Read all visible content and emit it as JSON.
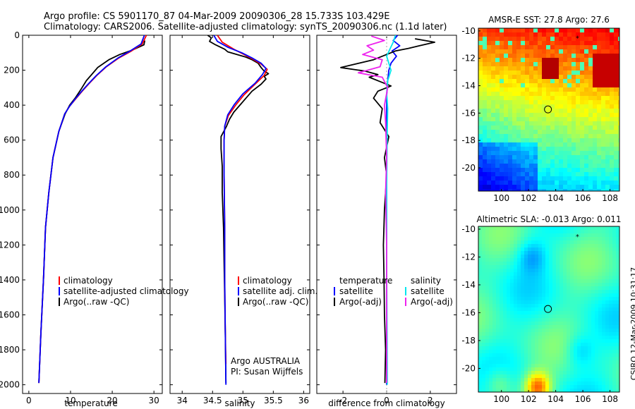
{
  "figure": {
    "title_line1": "Argo profile: CS 5901170_87 04-Mar-2009 20090306_28 15.733S 103.429E",
    "title_line2": "Climatology: CARS2006. Satellite-adjusted climatology: synTS_20090306.nc (1.1d later)",
    "side_label": "CSIRO 12-Mar-2009 10:31:17",
    "argo_label_line1": "Argo AUSTRALIA",
    "argo_label_line2": "PI: Susan Wijffels"
  },
  "colors": {
    "climatology": "#ff0000",
    "satellite": "#0000ff",
    "argo": "#000000",
    "sal_satellite": "#00e5ee",
    "sal_argo": "#ee22ee"
  },
  "chart_data": [
    {
      "id": "temperature",
      "type": "line",
      "xlabel": "temperature",
      "ylabel": "",
      "xlim": [
        -1.5,
        32
      ],
      "ylim": [
        2050,
        0
      ],
      "xticks": [
        "0",
        "10",
        "20",
        "30"
      ],
      "xtick_values": [
        0,
        10,
        20,
        30
      ],
      "yticks": [
        "0",
        "200",
        "400",
        "600",
        "800",
        "1000",
        "1200",
        "1400",
        "1600",
        "1800",
        "2000"
      ],
      "ytick_values": [
        0,
        200,
        400,
        600,
        800,
        1000,
        1200,
        1400,
        1600,
        1800,
        2000
      ],
      "legend": [
        "climatology",
        "satellite-adjusted climatology",
        "Argo(..raw -QC)"
      ],
      "series": [
        {
          "name": "Argo(..raw -QC)",
          "color_key": "argo",
          "x": [
            27.8,
            27.6,
            24.8,
            21.8,
            19.2,
            16.5,
            15.6,
            13.8,
            12.5,
            11.1,
            9.8,
            8.7,
            7.2,
            5.8,
            4.8,
            4.0,
            3.5,
            2.9,
            2.4
          ],
          "y": [
            30,
            55,
            85,
            110,
            140,
            185,
            210,
            260,
            310,
            360,
            400,
            450,
            550,
            700,
            900,
            1100,
            1400,
            1700,
            1990
          ]
        },
        {
          "name": "climatology",
          "color_key": "climatology",
          "x": [
            28.2,
            27.2,
            24.6,
            21.6,
            18.6,
            16.3,
            14.3,
            12.8,
            11.2,
            9.8,
            8.6,
            7.2,
            5.8,
            4.8,
            4.0,
            3.5,
            2.9,
            2.4
          ],
          "y": [
            0,
            50,
            90,
            130,
            180,
            230,
            280,
            320,
            365,
            405,
            450,
            550,
            700,
            900,
            1100,
            1400,
            1700,
            1990
          ]
        },
        {
          "name": "satellite-adjusted climatology",
          "color_key": "satellite",
          "x": [
            27.7,
            26.9,
            24.3,
            21.4,
            18.5,
            16.2,
            14.2,
            12.7,
            11.1,
            9.8,
            8.6,
            7.2,
            5.8,
            4.8,
            4.0,
            3.5,
            2.9,
            2.4
          ],
          "y": [
            0,
            50,
            90,
            130,
            180,
            230,
            280,
            320,
            365,
            405,
            450,
            550,
            700,
            900,
            1100,
            1400,
            1700,
            1990
          ]
        }
      ]
    },
    {
      "id": "salinity",
      "type": "line",
      "xlabel": "salinity",
      "xlim": [
        33.8,
        36.1
      ],
      "ylim": [
        2050,
        0
      ],
      "xticks": [
        "34",
        "34.5",
        "35",
        "35.5",
        "36"
      ],
      "xtick_values": [
        34,
        34.5,
        35,
        35.5,
        36
      ],
      "legend": [
        "climatology",
        "satellite adj. clim.",
        "Argo(..raw -QC)"
      ],
      "series": [
        {
          "name": "Argo(..raw -QC)",
          "color_key": "argo",
          "x": [
            34.42,
            34.48,
            34.45,
            34.55,
            34.7,
            34.75,
            34.9,
            35.05,
            35.15,
            35.25,
            35.3,
            35.35,
            35.42,
            35.35,
            35.38,
            35.3,
            35.15,
            35.05,
            34.95,
            34.85,
            34.78,
            34.73,
            34.64,
            34.64,
            34.66,
            34.66,
            34.68,
            34.69,
            34.7,
            34.71,
            34.72
          ],
          "y": [
            0,
            15,
            35,
            55,
            80,
            95,
            110,
            125,
            140,
            160,
            185,
            205,
            220,
            235,
            250,
            280,
            320,
            360,
            400,
            440,
            480,
            520,
            580,
            650,
            750,
            900,
            1100,
            1300,
            1500,
            1700,
            1990
          ]
        },
        {
          "name": "climatology",
          "color_key": "climatology",
          "x": [
            34.58,
            34.66,
            34.85,
            35.02,
            35.18,
            35.3,
            35.4,
            35.35,
            35.2,
            35.02,
            34.88,
            34.76,
            34.7,
            34.69,
            34.69,
            34.7,
            34.7,
            34.71,
            34.72
          ],
          "y": [
            0,
            40,
            80,
            110,
            140,
            165,
            195,
            230,
            280,
            340,
            400,
            460,
            520,
            600,
            800,
            1100,
            1400,
            1700,
            1880
          ]
        },
        {
          "name": "satellite adj. clim.",
          "color_key": "satellite",
          "x": [
            34.52,
            34.58,
            34.76,
            34.98,
            35.15,
            35.3,
            35.38,
            35.32,
            35.2,
            35.0,
            34.86,
            34.75,
            34.7,
            34.69,
            34.69,
            34.7,
            34.7,
            34.71,
            34.72
          ],
          "y": [
            0,
            35,
            70,
            100,
            130,
            160,
            190,
            225,
            275,
            335,
            395,
            455,
            520,
            600,
            800,
            1100,
            1400,
            1700,
            2000
          ]
        }
      ]
    },
    {
      "id": "difference",
      "type": "line",
      "xlabel": "difference from climatology",
      "xlim": [
        -3.2,
        3.2
      ],
      "ylim": [
        2050,
        0
      ],
      "xticks": [
        "-2",
        "0",
        "2"
      ],
      "xtick_values": [
        -2,
        0,
        2
      ],
      "legend_temperature": [
        "temperature",
        "satellite",
        "Argo(-adj)"
      ],
      "legend_salinity": [
        "salinity",
        "satellite",
        "Argo(-adj)"
      ],
      "series": [
        {
          "name": "temperature satellite",
          "color_key": "satellite",
          "x": [
            0.5,
            0.3,
            0.6,
            0.25,
            0.45,
            0.2,
            0.1,
            0.05,
            0.0,
            0.0,
            0.0,
            0.0,
            0.0,
            0.0
          ],
          "y": [
            0,
            30,
            60,
            90,
            120,
            160,
            200,
            260,
            350,
            500,
            800,
            1200,
            1600,
            2000
          ]
        },
        {
          "name": "temperature Argo(-adj)",
          "color_key": "argo",
          "x": [
            1.3,
            2.2,
            1.5,
            1.0,
            0.4,
            -0.6,
            -2.1,
            -1.0,
            -0.4,
            -0.8,
            -0.3,
            0.2,
            -0.4,
            -0.6,
            -0.2,
            -0.3,
            0.1,
            -0.1,
            0.0,
            -0.05,
            -0.1,
            -0.15,
            -0.12,
            -0.1,
            -0.05,
            -0.08
          ],
          "y": [
            20,
            40,
            60,
            75,
            90,
            140,
            185,
            205,
            225,
            240,
            265,
            290,
            320,
            360,
            420,
            500,
            580,
            700,
            800,
            900,
            1000,
            1200,
            1400,
            1600,
            1800,
            1990
          ]
        },
        {
          "name": "salinity satellite",
          "color_key": "sal_satellite",
          "x": [
            0.4,
            0.3,
            0.15,
            0.0,
            0.1,
            0.2,
            0.05,
            0.0,
            0.05,
            0.02,
            0.0,
            0.0,
            0.02,
            0.03
          ],
          "y": [
            0,
            40,
            80,
            120,
            160,
            200,
            260,
            330,
            420,
            600,
            900,
            1300,
            1700,
            2000
          ]
        },
        {
          "name": "salinity Argo(-adj)",
          "color_key": "sal_argo",
          "x": [
            -0.7,
            -0.1,
            -0.9,
            -0.6,
            -1.1,
            -0.2,
            -0.3,
            -1.3,
            -0.2,
            0.05,
            -0.1,
            -0.05,
            0.0,
            -0.05,
            0.0,
            0.0,
            0.0
          ],
          "y": [
            5,
            30,
            60,
            85,
            110,
            140,
            180,
            215,
            240,
            300,
            400,
            500,
            700,
            900,
            1200,
            1600,
            1990
          ]
        }
      ]
    },
    {
      "id": "sst_map",
      "type": "heatmap",
      "title": "AMSR-E SST: 27.8 Argo: 27.6",
      "xticks": [
        "100",
        "102",
        "104",
        "106",
        "108"
      ],
      "xtick_values": [
        100,
        102,
        104,
        106,
        108
      ],
      "yticks": [
        "-10",
        "-12",
        "-14",
        "-16",
        "-18",
        "-20"
      ],
      "ytick_values": [
        -10,
        -12,
        -14,
        -16,
        -18,
        -20
      ],
      "xlim": [
        98.3,
        108.7
      ],
      "ylim": [
        -21.7,
        -9.8
      ],
      "argo_position": [
        103.429,
        -15.733
      ],
      "star_position": [
        105.6,
        -10.5
      ]
    },
    {
      "id": "sla_map",
      "type": "heatmap",
      "title": "Altimetric SLA: -0.013 Argo: 0.011",
      "xticks": [
        "100",
        "102",
        "104",
        "106",
        "108"
      ],
      "xtick_values": [
        100,
        102,
        104,
        106,
        108
      ],
      "yticks": [
        "-10",
        "-12",
        "-14",
        "-16",
        "-18",
        "-20"
      ],
      "ytick_values": [
        -10,
        -12,
        -14,
        -16,
        -18,
        -20
      ],
      "xlim": [
        98.3,
        108.7
      ],
      "ylim": [
        -21.7,
        -9.8
      ],
      "argo_position": [
        103.429,
        -15.733
      ],
      "star_position": [
        105.6,
        -10.5
      ]
    }
  ]
}
